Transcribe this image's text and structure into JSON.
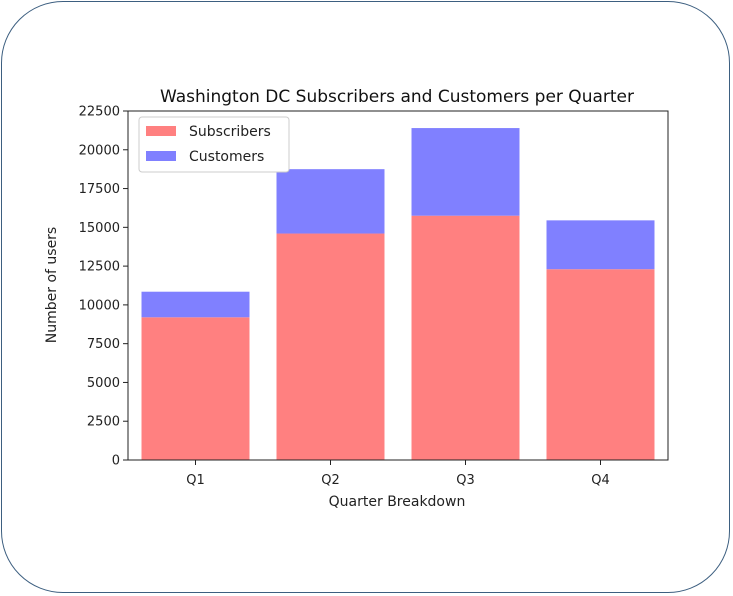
{
  "chart_data": {
    "type": "bar",
    "stacked": true,
    "title": "Washington DC Subscribers and Customers per Quarter",
    "xlabel": "Quarter Breakdown",
    "ylabel": "Number of users",
    "categories": [
      "Q1",
      "Q2",
      "Q3",
      "Q4"
    ],
    "series": [
      {
        "name": "Subscribers",
        "color": "#ff8080",
        "values": [
          9200,
          14600,
          15750,
          12300
        ]
      },
      {
        "name": "Customers",
        "color": "#8080ff",
        "values": [
          1650,
          4150,
          5650,
          3150
        ]
      }
    ],
    "ylim": [
      0,
      22500
    ],
    "yticks": [
      "0",
      "2500",
      "5000",
      "7500",
      "10000",
      "12500",
      "15000",
      "17500",
      "20000",
      "22500"
    ],
    "grid": false,
    "legend_position": "top-left"
  }
}
